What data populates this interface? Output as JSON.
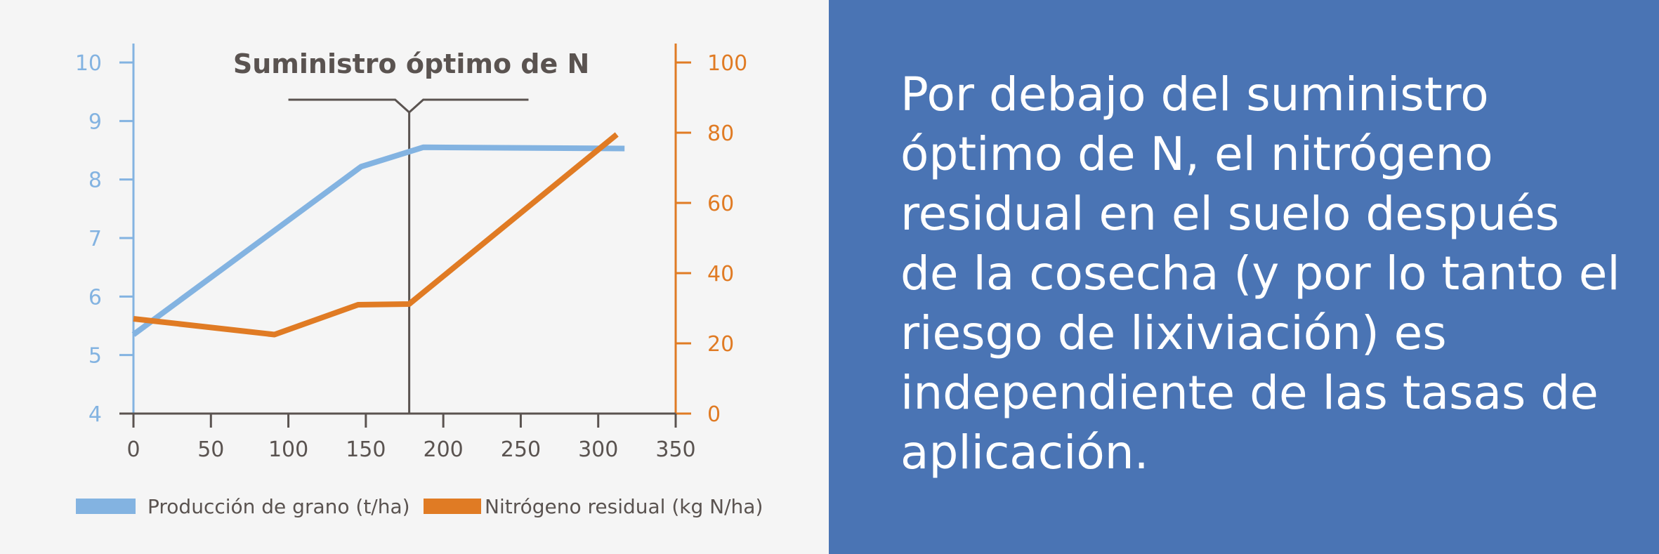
{
  "chart_data": {
    "type": "line",
    "annotation": "Suministro óptimo de N",
    "x_ticks": [
      0,
      50,
      100,
      150,
      200,
      250,
      300,
      350
    ],
    "xlim": [
      0,
      350
    ],
    "y_left_ticks": [
      4,
      5,
      6,
      7,
      8,
      9,
      10
    ],
    "ylim_left": [
      4,
      10
    ],
    "y_right_ticks": [
      0,
      20,
      40,
      60,
      80,
      100
    ],
    "ylim_right": [
      0,
      100
    ],
    "optimum_x": 178,
    "series": [
      {
        "name": "Producción de grano (t/ha)",
        "axis": "left",
        "color": "#83b3e1",
        "x": [
          0,
          147,
          187,
          317
        ],
        "y": [
          5.35,
          8.22,
          8.55,
          8.53
        ]
      },
      {
        "name": "Nitrógeno residual (kg N/ha)",
        "axis": "right",
        "color": "#e07b24",
        "x": [
          0,
          91,
          145,
          178,
          312
        ],
        "y": [
          27,
          22.5,
          31,
          31.2,
          79.5
        ]
      }
    ],
    "legend_position": "bottom",
    "grid": false
  },
  "colors": {
    "left_axis": "#83b3e1",
    "right_axis": "#e07b24",
    "axis": "#5a5350",
    "panel_bg": "#4a74b4"
  },
  "panel": {
    "text": "Por debajo del suministro óptimo de N, el nitrógeno residual en el suelo después de la cosecha (y por lo tanto el riesgo de lixiviación) es independiente de las tasas de aplicación."
  }
}
